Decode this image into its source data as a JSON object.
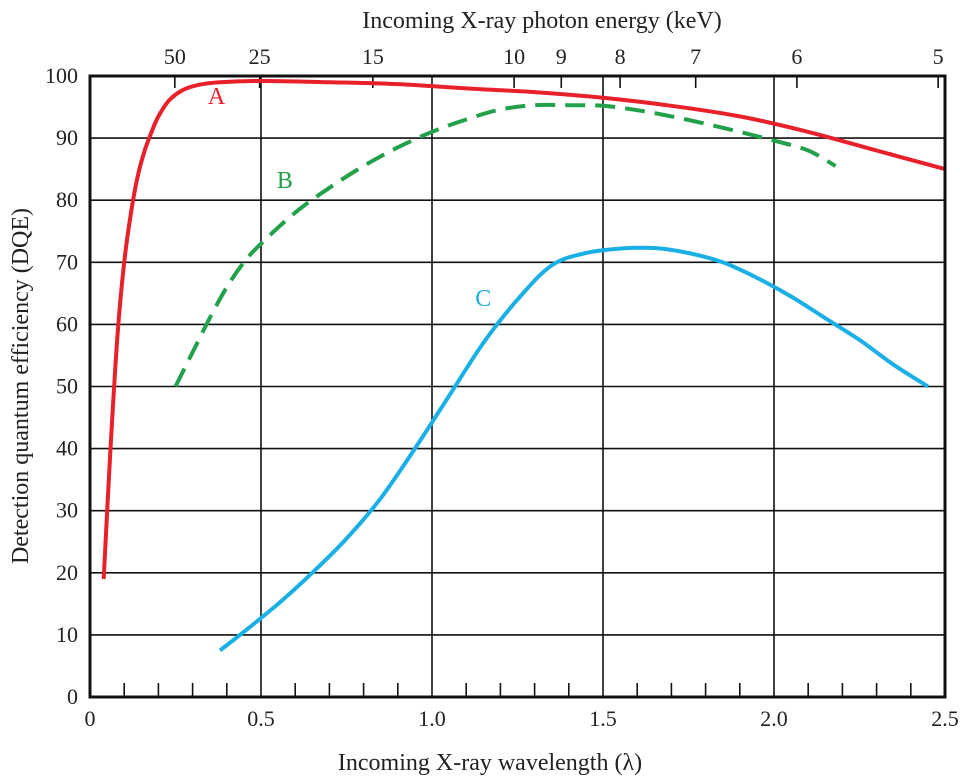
{
  "chart_data": {
    "type": "line",
    "xlabel": "Incoming X-ray wavelength (λ)",
    "ylabel": "Detection quantum efficiency (DQE)",
    "top_xlabel": "Incoming X-ray photon energy (keV)",
    "xlim": [
      0,
      2.5
    ],
    "ylim": [
      0,
      100
    ],
    "x_ticks": [
      {
        "value": 0,
        "label": "0"
      },
      {
        "value": 0.5,
        "label": "0.5"
      },
      {
        "value": 1.0,
        "label": "1.0"
      },
      {
        "value": 1.5,
        "label": "1.5"
      },
      {
        "value": 2.0,
        "label": "2.0"
      },
      {
        "value": 2.5,
        "label": "2.5"
      }
    ],
    "y_ticks": [
      0,
      10,
      20,
      30,
      40,
      50,
      60,
      70,
      80,
      90,
      100
    ],
    "top_ticks": [
      {
        "wavelength": 0.248,
        "label": "50"
      },
      {
        "wavelength": 0.496,
        "label": "25"
      },
      {
        "wavelength": 0.827,
        "label": "15"
      },
      {
        "wavelength": 1.24,
        "label": "10"
      },
      {
        "wavelength": 1.378,
        "label": "9"
      },
      {
        "wavelength": 1.55,
        "label": "8"
      },
      {
        "wavelength": 1.771,
        "label": "7"
      },
      {
        "wavelength": 2.067,
        "label": "6"
      },
      {
        "wavelength": 2.48,
        "label": "5"
      }
    ],
    "grid": true,
    "series": [
      {
        "name": "A",
        "color": "#e8202a",
        "dashed": false,
        "label_at": [
          0.37,
          95.5
        ],
        "x": [
          0.04,
          0.06,
          0.08,
          0.1,
          0.12,
          0.14,
          0.16,
          0.18,
          0.2,
          0.23,
          0.27,
          0.32,
          0.38,
          0.5,
          0.7,
          0.9,
          1.1,
          1.3,
          1.5,
          1.7,
          1.9,
          2.1,
          2.3,
          2.5
        ],
        "y": [
          19,
          40,
          58,
          70,
          78,
          84,
          88,
          91,
          93.5,
          96,
          97.7,
          98.6,
          99,
          99.2,
          99,
          98.7,
          98,
          97.4,
          96.5,
          95.2,
          93.5,
          91,
          88,
          85
        ]
      },
      {
        "name": "B",
        "color": "#22a04a",
        "dashed": true,
        "label_at": [
          0.57,
          82
        ],
        "x": [
          0.25,
          0.3,
          0.35,
          0.4,
          0.45,
          0.5,
          0.6,
          0.7,
          0.8,
          0.9,
          1.0,
          1.1,
          1.2,
          1.3,
          1.4,
          1.5,
          1.6,
          1.7,
          1.8,
          1.9,
          2.0,
          2.1,
          2.18
        ],
        "y": [
          50,
          55.5,
          61,
          66,
          70,
          73,
          78,
          82,
          85.5,
          88.5,
          91,
          93,
          94.6,
          95.3,
          95.3,
          95.2,
          94.5,
          93.5,
          92.3,
          91,
          89.6,
          88,
          85.5
        ]
      },
      {
        "name": "C",
        "color": "#1ab0e6",
        "dashed": false,
        "label_at": [
          1.15,
          63
        ],
        "x": [
          0.38,
          0.45,
          0.55,
          0.65,
          0.75,
          0.85,
          0.95,
          1.05,
          1.15,
          1.25,
          1.35,
          1.45,
          1.55,
          1.65,
          1.75,
          1.85,
          1.95,
          2.05,
          2.15,
          2.25,
          2.35,
          2.45
        ],
        "y": [
          7.5,
          10.5,
          15,
          20,
          25.5,
          32,
          40,
          48.5,
          57,
          64,
          69.5,
          71.5,
          72.2,
          72.3,
          71.5,
          70,
          67.5,
          64.5,
          61,
          57.5,
          53.5,
          50
        ]
      }
    ]
  }
}
